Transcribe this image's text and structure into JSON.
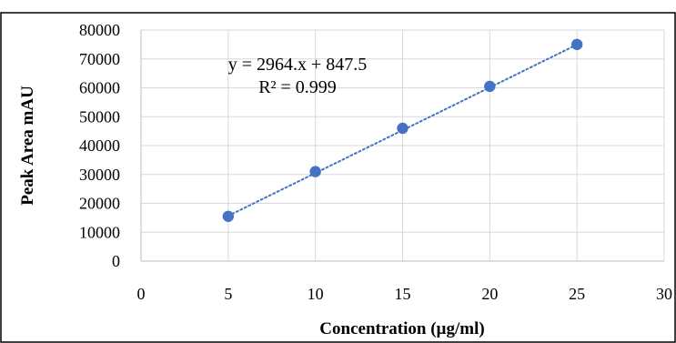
{
  "chart_data": {
    "type": "scatter",
    "x": [
      5,
      10,
      15,
      20,
      25
    ],
    "y": [
      15500,
      31000,
      46000,
      60500,
      75000
    ],
    "xlabel": "Concentration (µg/ml)",
    "ylabel": "Peak Area mAU",
    "xlim": [
      0,
      30
    ],
    "ylim": [
      0,
      80000
    ],
    "x_ticks": [
      0,
      5,
      10,
      15,
      20,
      25,
      30
    ],
    "y_ticks": [
      0,
      10000,
      20000,
      30000,
      40000,
      50000,
      60000,
      70000,
      80000
    ],
    "x_tick_labels": [
      "0",
      "5",
      "10",
      "15",
      "20",
      "25",
      "30"
    ],
    "y_tick_labels": [
      "0",
      "10000",
      "20000",
      "30000",
      "40000",
      "50000",
      "60000",
      "70000",
      "80000"
    ],
    "trendline": {
      "type": "linear",
      "slope": 2964,
      "intercept": 847.5,
      "style": "dotted",
      "color": "#4472C4"
    },
    "annotations": {
      "equation": "y = 2964.x + 847.5",
      "r_squared": "R² = 0.999"
    },
    "grid": true,
    "marker_color": "#4472C4",
    "grid_color": "#D9D9D9"
  }
}
